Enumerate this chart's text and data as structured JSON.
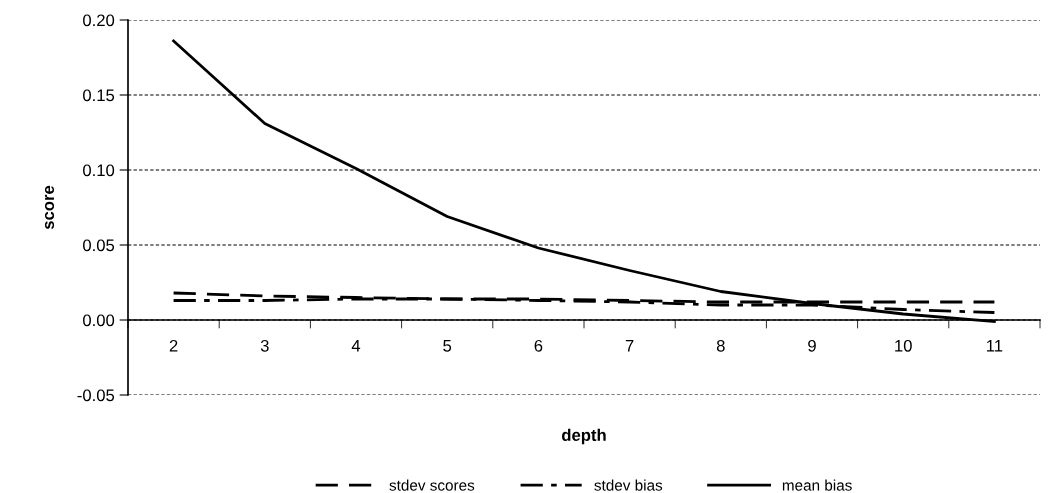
{
  "chart_data": {
    "type": "line",
    "xlabel": "depth",
    "ylabel": "score",
    "categories": [
      "2",
      "3",
      "4",
      "5",
      "6",
      "7",
      "8",
      "9",
      "10",
      "11"
    ],
    "series": [
      {
        "name": "stdev scores",
        "color": "#000000",
        "line_style": "dashed",
        "values": [
          0.018,
          0.016,
          0.015,
          0.014,
          0.014,
          0.013,
          0.012,
          0.012,
          0.012,
          0.012
        ]
      },
      {
        "name": "stdev bias",
        "color": "#000000",
        "line_style": "dashdot",
        "values": [
          0.013,
          0.013,
          0.014,
          0.014,
          0.013,
          0.012,
          0.01,
          0.01,
          0.007,
          0.005
        ]
      },
      {
        "name": "mean bias",
        "color": "#000000",
        "line_style": "solid",
        "values": [
          0.186,
          0.131,
          0.101,
          0.069,
          0.048,
          0.033,
          0.019,
          0.011,
          0.004,
          -0.001
        ]
      }
    ],
    "ylim": [
      -0.05,
      0.2
    ],
    "yticks": [
      {
        "value": -0.05,
        "label": "-0.05"
      },
      {
        "value": 0,
        "label": "0.00"
      },
      {
        "value": 0.05,
        "label": "0.05"
      },
      {
        "value": 0.1,
        "label": "0.10"
      },
      {
        "value": 0.15,
        "label": "0.15"
      },
      {
        "value": 0.2,
        "label": "0.20"
      }
    ],
    "grid": "y",
    "legend": "bottom"
  }
}
